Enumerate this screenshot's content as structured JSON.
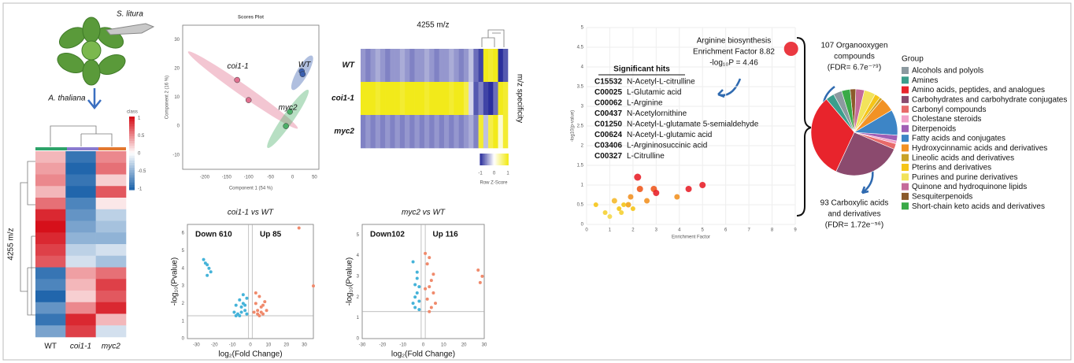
{
  "illustration": {
    "insect": "S. litura",
    "plant": "A. thaliana"
  },
  "chart_data": [
    {
      "type": "heatmap",
      "title": "4255 m/z",
      "columns": [
        "WT",
        "coi1-1",
        "myc2"
      ],
      "legend_title": "class",
      "legend_ticks": [
        1,
        0.5,
        0,
        -0.5,
        -1
      ],
      "colors": [
        "#2166ac",
        "#ffffff",
        "#d6101a"
      ],
      "values": [
        [
          0.3,
          -0.9,
          0.5
        ],
        [
          0.4,
          -1,
          0.6
        ],
        [
          0.5,
          -0.9,
          0.2
        ],
        [
          0.3,
          -1,
          0.7
        ],
        [
          0.6,
          -0.8,
          0.1
        ],
        [
          0.9,
          -0.7,
          -0.3
        ],
        [
          1,
          -0.6,
          -0.4
        ],
        [
          0.9,
          -0.5,
          -0.5
        ],
        [
          0.8,
          -0.3,
          -0.2
        ],
        [
          0.7,
          -0.2,
          -0.4
        ],
        [
          -0.9,
          0.4,
          0.6
        ],
        [
          -0.8,
          0.3,
          0.8
        ],
        [
          -1,
          0.2,
          0.7
        ],
        [
          -0.7,
          0.5,
          0.9
        ],
        [
          -0.9,
          0.9,
          0.3
        ],
        [
          -0.6,
          0.8,
          -0.2
        ]
      ]
    },
    {
      "type": "scores",
      "title": "Scores Plot",
      "xlabel": "Component 1 (54 %)",
      "ylabel": "Component 2 (16 %)",
      "xlim": [
        -250,
        60
      ],
      "xticks": [
        -200,
        -150,
        -100,
        -50,
        0,
        50
      ],
      "ylim": [
        -15,
        35
      ],
      "yticks": [
        -10,
        0,
        10,
        20,
        30
      ],
      "series": [
        {
          "name": "coi1-1",
          "color": "#e0708f",
          "x": [
            -126,
            -100
          ],
          "y": [
            16,
            9
          ]
        },
        {
          "name": "WT",
          "color": "#3a5fb0",
          "x": [
            21,
            23
          ],
          "y": [
            19,
            18
          ]
        },
        {
          "name": "myc2",
          "color": "#4caf68",
          "x": [
            -6,
            -15
          ],
          "y": [
            5,
            0
          ]
        }
      ]
    },
    {
      "type": "heatmap-rows",
      "title": "4255 m/z",
      "rows": [
        "WT",
        "coi1-1",
        "myc2"
      ],
      "side_label": "m/z specificity",
      "legend_title": "Row Z-Score",
      "legend_ticks": [
        -1,
        0,
        1
      ],
      "colors": [
        "#2b2f9c",
        "#ffffff",
        "#f2ea1a"
      ],
      "values": [
        [
          -0.5,
          -0.6,
          -0.5,
          -0.4,
          -0.5,
          -0.6,
          -0.5,
          -0.5,
          -0.4,
          -0.5,
          -0.6,
          -0.5,
          -0.5,
          -0.4,
          -0.5,
          -0.6,
          -0.5,
          -0.5,
          -0.4,
          -0.5,
          -0.6,
          -0.5,
          -0.3,
          -0.7,
          -0.9,
          1,
          0.9,
          1,
          -1,
          -0.8
        ],
        [
          1,
          1,
          1,
          0.9,
          1,
          1,
          1,
          1,
          0.9,
          1,
          1,
          1,
          1,
          0.9,
          1,
          1,
          1,
          1,
          0.9,
          1,
          1,
          0.8,
          -0.2,
          -0.8,
          -0.6,
          -0.9,
          -1,
          -0.7,
          1,
          0.9
        ],
        [
          -0.6,
          -0.5,
          -0.6,
          -0.5,
          -0.6,
          -0.5,
          -0.6,
          -0.5,
          -0.6,
          -0.5,
          -0.6,
          -0.5,
          -0.6,
          -0.5,
          -0.6,
          -0.5,
          -0.6,
          -0.5,
          -0.6,
          -0.5,
          -0.6,
          -0.5,
          -0.4,
          -0.6,
          0.9,
          -0.3,
          0.8,
          1,
          0.2,
          0.9
        ]
      ]
    },
    {
      "type": "volcano",
      "title": "coi1-1 vs WT",
      "xlabel": "log₂(Fold Change)",
      "ylabel": "-log₁₀(Pvalue)",
      "annotations": [
        "Down 610",
        "Up 85"
      ],
      "xlim": [
        -35,
        35
      ],
      "xticks": [
        -30,
        -20,
        -10,
        0,
        10,
        20,
        30
      ],
      "ylim": [
        0,
        6.5
      ],
      "yticks": [
        0,
        1,
        2,
        3,
        4,
        5,
        6
      ],
      "hlines": [
        1.3
      ],
      "vlines": [
        -1,
        1
      ],
      "series": [
        {
          "color": "#45b3d9",
          "x": [
            -26,
            -25,
            -24,
            -23,
            -22,
            -24,
            -9,
            -8,
            -7,
            -6,
            -5,
            -4,
            -3,
            -2,
            -6,
            -5,
            -3,
            -8,
            -4,
            -2
          ],
          "y": [
            4.5,
            4.3,
            4.2,
            4.0,
            3.8,
            3.6,
            1.5,
            1.9,
            1.4,
            2.2,
            1.8,
            2.5,
            1.6,
            2.3,
            1.3,
            1.5,
            1.9,
            1.3,
            2.0,
            1.4
          ]
        },
        {
          "color": "#f08a6c",
          "x": [
            2,
            3,
            4,
            5,
            6,
            7,
            8,
            9,
            3,
            5,
            7,
            4,
            6,
            27,
            35
          ],
          "y": [
            1.5,
            2.0,
            1.6,
            2.4,
            1.8,
            1.4,
            2.1,
            1.6,
            2.6,
            1.3,
            1.9,
            1.4,
            1.5,
            6.3,
            3.0
          ]
        }
      ]
    },
    {
      "type": "volcano",
      "title": "myc2 vs WT",
      "xlabel": "log₂(Fold Change)",
      "ylabel": "-log₁₀(Pvalue)",
      "annotations": [
        "Down102",
        "Up 116"
      ],
      "xlim": [
        -30,
        30
      ],
      "xticks": [
        -30,
        -20,
        -10,
        0,
        10,
        20,
        30
      ],
      "ylim": [
        0,
        5.5
      ],
      "yticks": [
        0,
        1,
        2,
        3,
        4,
        5
      ],
      "hlines": [
        1.3
      ],
      "vlines": [
        -1,
        1
      ],
      "series": [
        {
          "color": "#45b3d9",
          "x": [
            -5,
            -4,
            -3,
            -2,
            -4,
            -3,
            -2,
            -5,
            -3,
            -4,
            -2
          ],
          "y": [
            3.7,
            2.6,
            2.9,
            1.8,
            1.5,
            2.2,
            1.4,
            1.7,
            3.2,
            2.0,
            2.5
          ]
        },
        {
          "color": "#f08a6c",
          "x": [
            1,
            2,
            3,
            4,
            5,
            6,
            2,
            3,
            4,
            5,
            1,
            3,
            27,
            29,
            28
          ],
          "y": [
            4.1,
            3.6,
            3.9,
            2.8,
            2.2,
            1.7,
            1.9,
            2.5,
            1.5,
            3.1,
            2.4,
            1.3,
            3.3,
            3.0,
            2.7
          ]
        }
      ]
    },
    {
      "type": "bubble",
      "xlabel": "Enrichment Factor",
      "ylabel": "-log10(p-value)",
      "xlim": [
        0,
        9
      ],
      "xticks": [
        0,
        1,
        2,
        3,
        4,
        5,
        6,
        7,
        8,
        9
      ],
      "ylim": [
        0,
        5
      ],
      "yticks": [
        0,
        0.5,
        1,
        1.5,
        2,
        2.5,
        3,
        3.5,
        4,
        4.5,
        5
      ],
      "x": [
        0.4,
        0.8,
        1.0,
        1.2,
        1.4,
        1.5,
        1.8,
        1.9,
        2.0,
        2.2,
        2.3,
        2.6,
        2.9,
        3.0,
        3.9,
        4.4,
        5.0,
        1.6,
        8.82
      ],
      "y": [
        0.5,
        0.3,
        0.2,
        0.6,
        0.4,
        0.3,
        0.5,
        0.7,
        0.4,
        1.2,
        0.9,
        0.6,
        0.9,
        0.8,
        0.7,
        0.9,
        1.0,
        0.5,
        4.46
      ],
      "colors": [
        "#f5c518",
        "#f5d033",
        "#f5d84a",
        "#f5b92e",
        "#f5c518",
        "#f5d033",
        "#f2a31c",
        "#f29224",
        "#f5c518",
        "#e8242c",
        "#ee5a1f",
        "#f29224",
        "#ee5a1f",
        "#e8242c",
        "#f29224",
        "#e8242c",
        "#e8242c",
        "#f5c518",
        "#e8242c"
      ],
      "sizes": [
        3,
        3,
        3,
        3.5,
        3,
        3,
        3.5,
        3.5,
        3,
        4.5,
        4,
        3.5,
        4,
        4,
        3.5,
        4,
        4,
        3,
        9
      ],
      "highlight": {
        "lines": [
          "Arginine biosynthesis",
          "Enrichment Factor 8.82",
          "-log₁₀P = 4.46"
        ]
      },
      "table": {
        "title": "Significant hits",
        "rows": [
          [
            "C15532",
            "N-Acetyl-L-citrulline"
          ],
          [
            "C00025",
            "L-Glutamic acid"
          ],
          [
            "C00062",
            "L-Arginine"
          ],
          [
            "C00437",
            "N-Acetylornithine"
          ],
          [
            "C01250",
            "N-Acetyl-L-glutamate 5-semialdehyde"
          ],
          [
            "C00624",
            "N-Acetyl-L-glutamic acid"
          ],
          [
            "C03406",
            "L-Argininosuccinic acid"
          ],
          [
            "C00327",
            "L-Citrulline"
          ]
        ]
      }
    },
    {
      "type": "pie",
      "legend_title": "Group",
      "categories": [
        "Alcohols and polyols",
        "Amines",
        "Amino acids, peptides, and analogues",
        "Carbohydrates and carbohydrate conjugates",
        "Carbonyl compounds",
        "Cholestane steroids",
        "Diterpenoids",
        "Fatty acids and conjugates",
        "Hydroxycinnamic acids and derivatives",
        "Lineolic acids and derivatives",
        "Pterins and derivatives",
        "Purines and purine derivatives",
        "Quinone and hydroquinone lipids",
        "Sesquiterpenoids",
        "Short-chain keto acids and derivatives"
      ],
      "values": [
        3,
        3,
        30,
        24,
        2,
        1,
        2,
        9,
        5,
        1,
        2,
        4,
        3,
        2,
        3
      ],
      "colors": [
        "#8c9aa0",
        "#3b9e8c",
        "#e8242c",
        "#8b4a6e",
        "#e86a6a",
        "#f1a0c8",
        "#a05fb5",
        "#3d85c6",
        "#f29224",
        "#c9a227",
        "#f5c518",
        "#f2e35b",
        "#c56a9a",
        "#8b5a2b",
        "#3aaa48"
      ],
      "annotations": [
        [
          "107 Organooxygen",
          "compounds",
          "(FDR= 6.7e⁻⁷⁹)"
        ],
        [
          "93 Carboxylic acids",
          "and derivatives",
          "(FDR= 1.72e⁻⁵⁶)"
        ]
      ]
    }
  ]
}
